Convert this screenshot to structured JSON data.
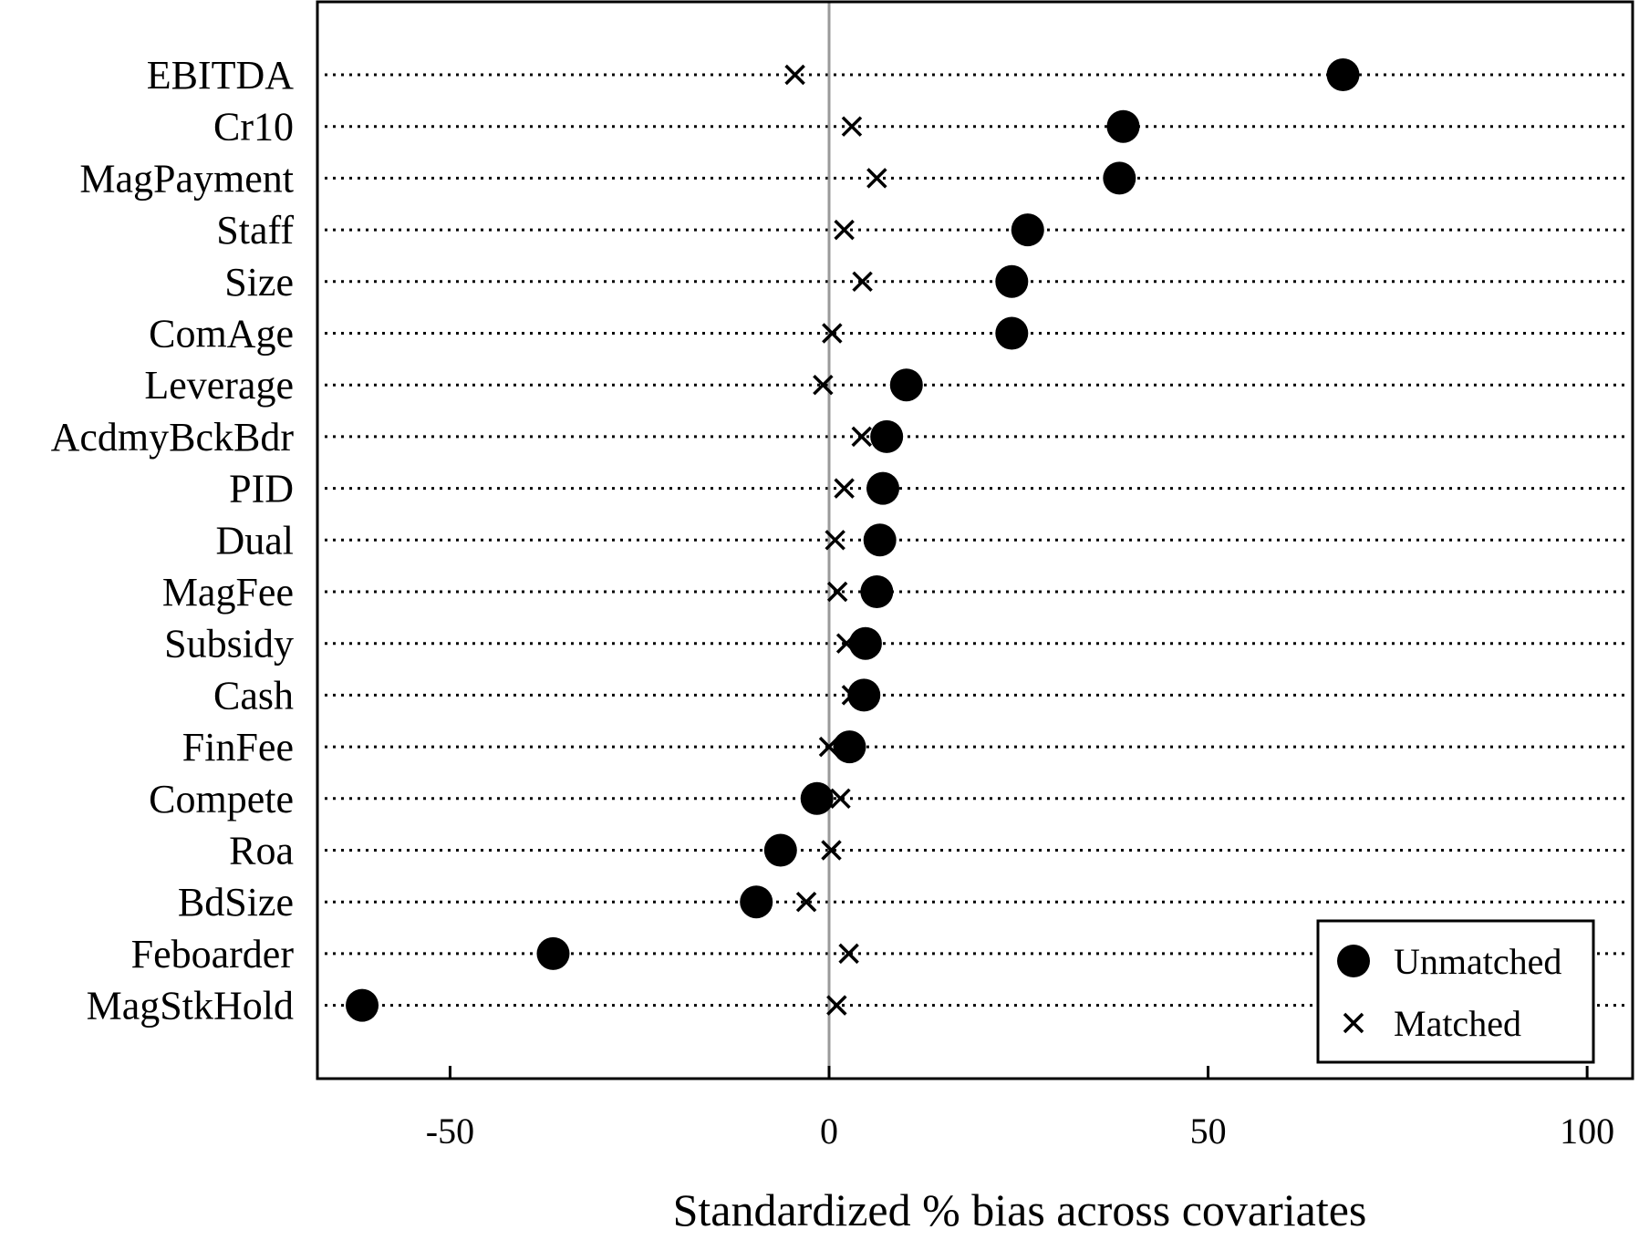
{
  "chart_data": {
    "type": "scatter",
    "xlabel": "Standardized % bias across covariates",
    "ylabel": "",
    "xlim": [
      -67.5,
      106
    ],
    "xticks": [
      -50,
      0,
      50,
      100
    ],
    "xtick_labels": [
      "-50",
      "0",
      "50",
      "100"
    ],
    "reference_line_x": 0,
    "grid": "dotted horizontal guide per covariate",
    "legend_position": "bottom-right",
    "categories": [
      "EBITDA",
      "Cr10",
      "MagPayment",
      "Staff",
      "Size",
      "ComAge",
      "Leverage",
      "AcdmyBckBdr",
      "PID",
      "Dual",
      "MagFee",
      "Subsidy",
      "Cash",
      "FinFee",
      "Compete",
      "Roa",
      "BdSize",
      "Feboarder",
      "MagStkHold"
    ],
    "series": [
      {
        "name": "Unmatched",
        "marker": "filled-circle",
        "values": [
          67.8,
          38.8,
          38.3,
          26.2,
          24.1,
          24.1,
          10.2,
          7.6,
          7.1,
          6.7,
          6.3,
          4.8,
          4.6,
          2.7,
          -1.6,
          -6.4,
          -9.6,
          -36.4,
          -61.6
        ]
      },
      {
        "name": "Matched",
        "marker": "x",
        "values": [
          -4.5,
          3.0,
          6.3,
          2.0,
          4.4,
          0.4,
          -0.8,
          4.3,
          2.0,
          0.8,
          1.1,
          2.3,
          3.0,
          0.0,
          1.5,
          0.3,
          -3.0,
          2.6,
          1.0
        ]
      }
    ]
  }
}
